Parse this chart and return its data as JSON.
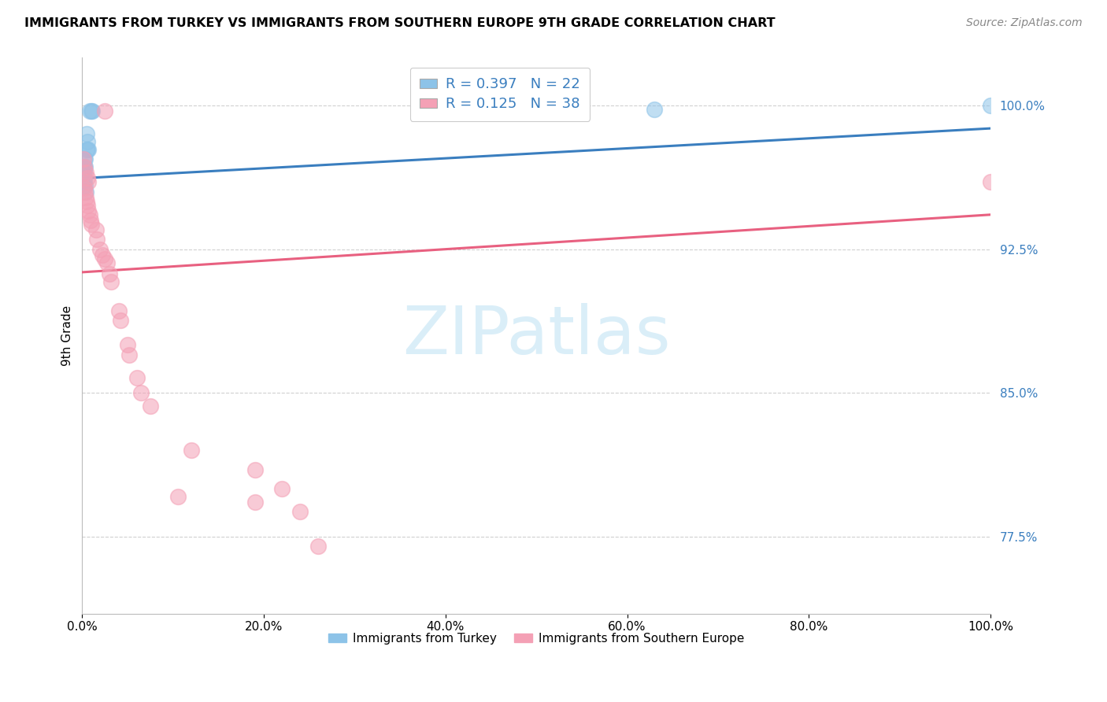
{
  "title": "IMMIGRANTS FROM TURKEY VS IMMIGRANTS FROM SOUTHERN EUROPE 9TH GRADE CORRELATION CHART",
  "source": "Source: ZipAtlas.com",
  "ylabel": "9th Grade",
  "ytick_labels": [
    "100.0%",
    "92.5%",
    "85.0%",
    "77.5%"
  ],
  "ytick_values": [
    1.0,
    0.925,
    0.85,
    0.775
  ],
  "xlim": [
    0.0,
    1.0
  ],
  "ylim": [
    0.735,
    1.025
  ],
  "legend_label1": "Immigrants from Turkey",
  "legend_label2": "Immigrants from Southern Europe",
  "r1": "0.397",
  "n1": "22",
  "r2": "0.125",
  "n2": "38",
  "color_blue": "#8dc3e8",
  "color_pink": "#f4a0b5",
  "line_color_blue": "#3a7ebf",
  "line_color_pink": "#e86080",
  "scatter_blue": [
    [
      0.008,
      0.997
    ],
    [
      0.01,
      0.997
    ],
    [
      0.011,
      0.997
    ],
    [
      0.005,
      0.985
    ],
    [
      0.006,
      0.981
    ],
    [
      0.005,
      0.977
    ],
    [
      0.006,
      0.977
    ],
    [
      0.007,
      0.977
    ],
    [
      0.002,
      0.972
    ],
    [
      0.003,
      0.972
    ],
    [
      0.001,
      0.968
    ],
    [
      0.002,
      0.968
    ],
    [
      0.003,
      0.968
    ],
    [
      0.001,
      0.965
    ],
    [
      0.002,
      0.965
    ],
    [
      0.001,
      0.961
    ],
    [
      0.002,
      0.961
    ],
    [
      0.001,
      0.958
    ],
    [
      0.003,
      0.958
    ],
    [
      0.004,
      0.955
    ],
    [
      0.63,
      0.998
    ],
    [
      1.0,
      1.0
    ]
  ],
  "scatter_pink": [
    [
      0.025,
      0.997
    ],
    [
      0.001,
      0.972
    ],
    [
      0.002,
      0.968
    ],
    [
      0.004,
      0.965
    ],
    [
      0.006,
      0.962
    ],
    [
      0.007,
      0.96
    ],
    [
      0.002,
      0.957
    ],
    [
      0.003,
      0.955
    ],
    [
      0.004,
      0.952
    ],
    [
      0.005,
      0.95
    ],
    [
      0.006,
      0.948
    ],
    [
      0.007,
      0.945
    ],
    [
      0.008,
      0.943
    ],
    [
      0.009,
      0.94
    ],
    [
      0.01,
      0.938
    ],
    [
      0.015,
      0.935
    ],
    [
      0.016,
      0.93
    ],
    [
      0.02,
      0.925
    ],
    [
      0.022,
      0.922
    ],
    [
      0.025,
      0.92
    ],
    [
      0.027,
      0.918
    ],
    [
      0.03,
      0.912
    ],
    [
      0.032,
      0.908
    ],
    [
      0.04,
      0.893
    ],
    [
      0.042,
      0.888
    ],
    [
      0.05,
      0.875
    ],
    [
      0.052,
      0.87
    ],
    [
      0.06,
      0.858
    ],
    [
      0.065,
      0.85
    ],
    [
      0.075,
      0.843
    ],
    [
      0.12,
      0.82
    ],
    [
      0.19,
      0.81
    ],
    [
      0.22,
      0.8
    ],
    [
      0.105,
      0.796
    ],
    [
      0.19,
      0.793
    ],
    [
      0.24,
      0.788
    ],
    [
      0.26,
      0.77
    ],
    [
      1.0,
      0.96
    ]
  ],
  "blue_trendline_x": [
    0.0,
    1.0
  ],
  "blue_trendline_y": [
    0.962,
    0.988
  ],
  "pink_trendline_x": [
    0.0,
    1.0
  ],
  "pink_trendline_y": [
    0.913,
    0.943
  ],
  "background_color": "#ffffff",
  "grid_color": "#d0d0d0",
  "watermark_text": "ZIPatlas",
  "watermark_color": "#daeef8"
}
